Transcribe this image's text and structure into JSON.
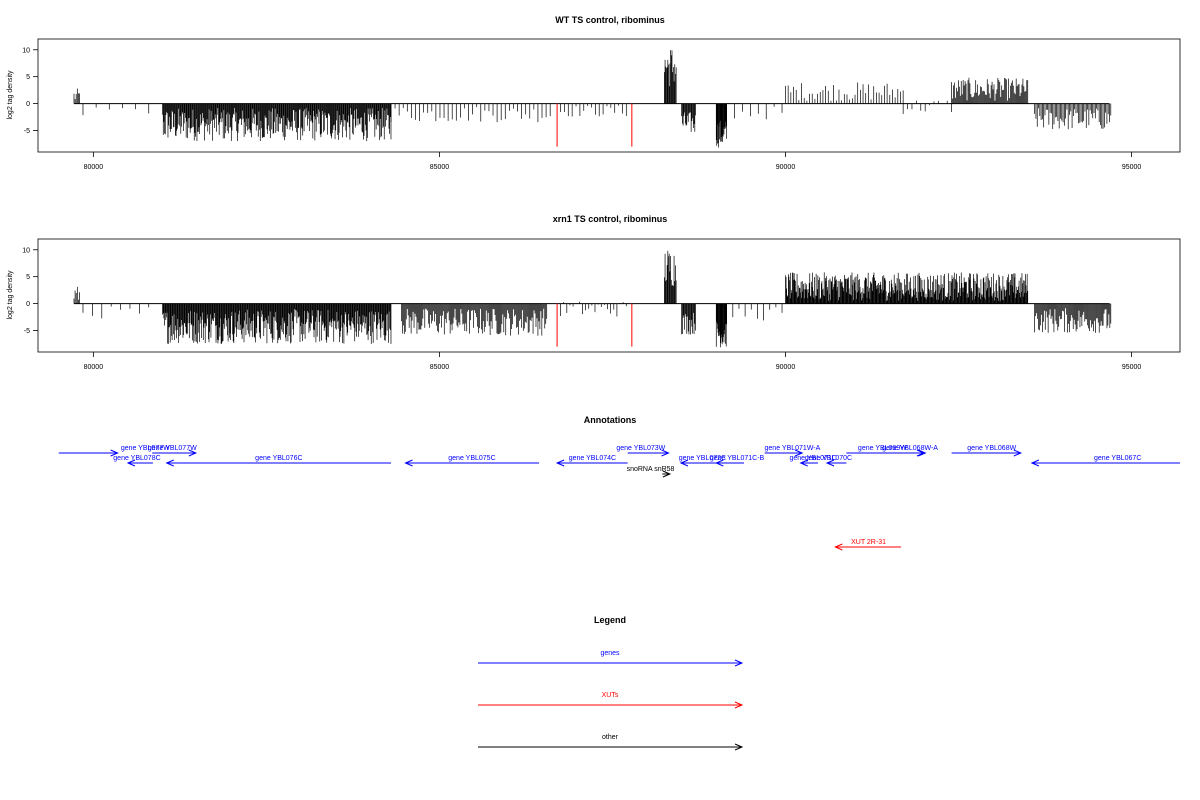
{
  "colors": {
    "genes": "#0000ff",
    "xuts": "#ff0000",
    "other": "#000000",
    "signal": "#000000"
  },
  "chart_data": [
    {
      "type": "bar",
      "title": "WT TS control, ribominus",
      "ylabel": "log2 tag density",
      "xlim": [
        79200,
        95700
      ],
      "ylim": [
        -9,
        12
      ],
      "xticks": [
        80000,
        85000,
        90000,
        95000
      ],
      "yticks": [
        10,
        5,
        0,
        -5
      ],
      "red_bars": [
        {
          "x": 86700,
          "y": -8
        },
        {
          "x": 87780,
          "y": -8
        }
      ],
      "series": [
        {
          "x0": 79720,
          "x1": 79800,
          "min": 0,
          "max": 2.8,
          "n": 6
        },
        {
          "x0": 79850,
          "x1": 80800,
          "min": -2.5,
          "max": -0.5,
          "n": 6
        },
        {
          "x0": 81000,
          "x1": 84300,
          "min": -7,
          "max": -0.8,
          "n": 340
        },
        {
          "x0": 84300,
          "x1": 86600,
          "min": -3.5,
          "max": -0.4,
          "n": 40
        },
        {
          "x0": 86750,
          "x1": 87700,
          "min": -2.5,
          "max": -0.3,
          "n": 18
        },
        {
          "x0": 88250,
          "x1": 88420,
          "min": 3,
          "max": 10.9,
          "n": 18
        },
        {
          "x0": 88500,
          "x1": 88700,
          "min": -5.8,
          "max": -1.5,
          "n": 20
        },
        {
          "x0": 89000,
          "x1": 89150,
          "min": -8.2,
          "max": -3,
          "n": 24
        },
        {
          "x0": 89150,
          "x1": 89950,
          "min": -3,
          "max": -0.5,
          "n": 8
        },
        {
          "x0": 90000,
          "x1": 91700,
          "min": 0.5,
          "max": 4,
          "n": 45
        },
        {
          "x0": 91700,
          "x1": 92400,
          "min": -2,
          "max": 1,
          "n": 12
        },
        {
          "x0": 92400,
          "x1": 93500,
          "min": 0.5,
          "max": 4.8,
          "n": 80
        },
        {
          "x0": 93600,
          "x1": 94700,
          "min": -5,
          "max": -0.8,
          "n": 60
        }
      ]
    },
    {
      "type": "bar",
      "title": "xrn1 TS control, ribominus",
      "ylabel": "log2 tag density",
      "xlim": [
        79200,
        95700
      ],
      "ylim": [
        -9,
        12
      ],
      "xticks": [
        80000,
        85000,
        90000,
        95000
      ],
      "yticks": [
        10,
        5,
        0,
        -5
      ],
      "red_bars": [
        {
          "x": 86700,
          "y": -8
        },
        {
          "x": 87780,
          "y": -8
        }
      ],
      "series": [
        {
          "x0": 79720,
          "x1": 79800,
          "min": 0,
          "max": 3.3,
          "n": 6
        },
        {
          "x0": 79850,
          "x1": 80800,
          "min": -2.8,
          "max": -0.5,
          "n": 8
        },
        {
          "x0": 81000,
          "x1": 84300,
          "min": -7.5,
          "max": -1,
          "n": 360
        },
        {
          "x0": 84450,
          "x1": 86550,
          "min": -6,
          "max": -0.8,
          "n": 150
        },
        {
          "x0": 86750,
          "x1": 87700,
          "min": -2.5,
          "max": 0.5,
          "n": 22
        },
        {
          "x0": 88250,
          "x1": 88420,
          "min": 3,
          "max": 10.5,
          "n": 18
        },
        {
          "x0": 88500,
          "x1": 88700,
          "min": -5.8,
          "max": -1.5,
          "n": 20
        },
        {
          "x0": 89000,
          "x1": 89150,
          "min": -8.2,
          "max": -3,
          "n": 24
        },
        {
          "x0": 89150,
          "x1": 89950,
          "min": -3.2,
          "max": -0.5,
          "n": 10
        },
        {
          "x0": 90000,
          "x1": 93500,
          "min": 0.5,
          "max": 5.8,
          "n": 420
        },
        {
          "x0": 93600,
          "x1": 94700,
          "min": -5.5,
          "max": -0.8,
          "n": 80
        }
      ]
    }
  ],
  "annotations": {
    "title": "Annotations",
    "features": [
      {
        "label": "gene YBL077W",
        "kind": "genes",
        "start": 79500,
        "end": 80350,
        "strand": "+",
        "row": 0,
        "label_at": 80750
      },
      {
        "label": "gene YBL077W",
        "kind": "genes",
        "start": 80850,
        "end": 81480,
        "strand": "+",
        "row": 0,
        "label_at": 81140
      },
      {
        "label": "gene YBL078C",
        "kind": "genes",
        "start": 80500,
        "end": 80860,
        "strand": "-",
        "row": 1,
        "label_at": 80630
      },
      {
        "label": "gene YBL076C",
        "kind": "genes",
        "start": 81060,
        "end": 84300,
        "strand": "-",
        "row": 1,
        "label_at": 82680
      },
      {
        "label": "gene YBL075C",
        "kind": "genes",
        "start": 84510,
        "end": 86440,
        "strand": "-",
        "row": 1,
        "label_at": 85470
      },
      {
        "label": "gene YBL074C",
        "kind": "genes",
        "start": 86700,
        "end": 87720,
        "strand": "-",
        "row": 1,
        "label_at": 87210
      },
      {
        "label": "gene YBL073W",
        "kind": "genes",
        "start": 87720,
        "end": 88310,
        "strand": "+",
        "row": 0,
        "label_at": 87910
      },
      {
        "label": "snoRNA snR58",
        "kind": "other",
        "start": 88220,
        "end": 88330,
        "strand": "+",
        "row": 2,
        "label_at": 88050
      },
      {
        "label": "gene YBL072C",
        "kind": "genes",
        "start": 88490,
        "end": 89350,
        "strand": "-",
        "row": 1,
        "label_at": 88800
      },
      {
        "label": "gene YBL071C-B",
        "kind": "genes",
        "start": 89000,
        "end": 89400,
        "strand": "-",
        "row": 1,
        "label_at": 89300
      },
      {
        "label": "gene YBL071W-A",
        "kind": "genes",
        "start": 89700,
        "end": 90240,
        "strand": "+",
        "row": 0,
        "label_at": 90100
      },
      {
        "label": "gene YBL071C",
        "kind": "genes",
        "start": 90220,
        "end": 90470,
        "strand": "-",
        "row": 1,
        "label_at": 90400
      },
      {
        "label": "gene YBL070C",
        "kind": "genes",
        "start": 90600,
        "end": 90880,
        "strand": "-",
        "row": 1,
        "label_at": 90620
      },
      {
        "label": "gene YBL069W",
        "kind": "genes",
        "start": 90880,
        "end": 92000,
        "strand": "+",
        "row": 0,
        "label_at": 91400
      },
      {
        "label": "gene YBL068W-A",
        "kind": "genes",
        "start": 91600,
        "end": 92020,
        "strand": "+",
        "row": 0,
        "label_at": 91800
      },
      {
        "label": "gene YBL068W",
        "kind": "genes",
        "start": 92400,
        "end": 93400,
        "strand": "+",
        "row": 0,
        "label_at": 92980
      },
      {
        "label": "gene YBL067C",
        "kind": "genes",
        "start": 93560,
        "end": 95700,
        "strand": "-",
        "row": 1,
        "label_at": 94800
      },
      {
        "label": "XUT 2R-31",
        "kind": "xuts",
        "start": 90720,
        "end": 91670,
        "strand": "-",
        "row": 3,
        "label_at": 91200
      }
    ]
  },
  "legend": {
    "title": "Legend",
    "items": [
      {
        "label": "genes",
        "kind": "genes"
      },
      {
        "label": "XUTs",
        "kind": "xuts"
      },
      {
        "label": "other",
        "kind": "other"
      }
    ]
  }
}
